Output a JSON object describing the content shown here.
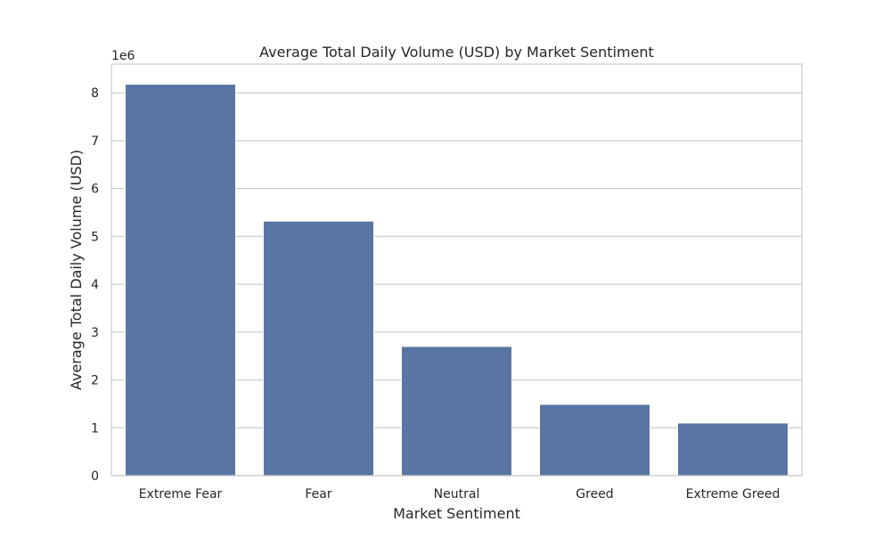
{
  "chart_data": {
    "type": "bar",
    "title": "Average Total Daily Volume (USD) by Market Sentiment",
    "xlabel": "Market Sentiment",
    "ylabel": "Average Total Daily Volume (USD)",
    "y_offset_label": "1e6",
    "categories": [
      "Extreme Fear",
      "Fear",
      "Neutral",
      "Greed",
      "Extreme Greed"
    ],
    "values": [
      8.18,
      5.32,
      2.7,
      1.49,
      1.1
    ],
    "value_scale": 1000000,
    "ylim": [
      0,
      8.6
    ],
    "yticks": [
      0,
      1,
      2,
      3,
      4,
      5,
      6,
      7,
      8
    ],
    "grid": true,
    "bar_color": "#5975a4",
    "grid_color": "#cccccc",
    "frame_color": "#cccccc"
  }
}
